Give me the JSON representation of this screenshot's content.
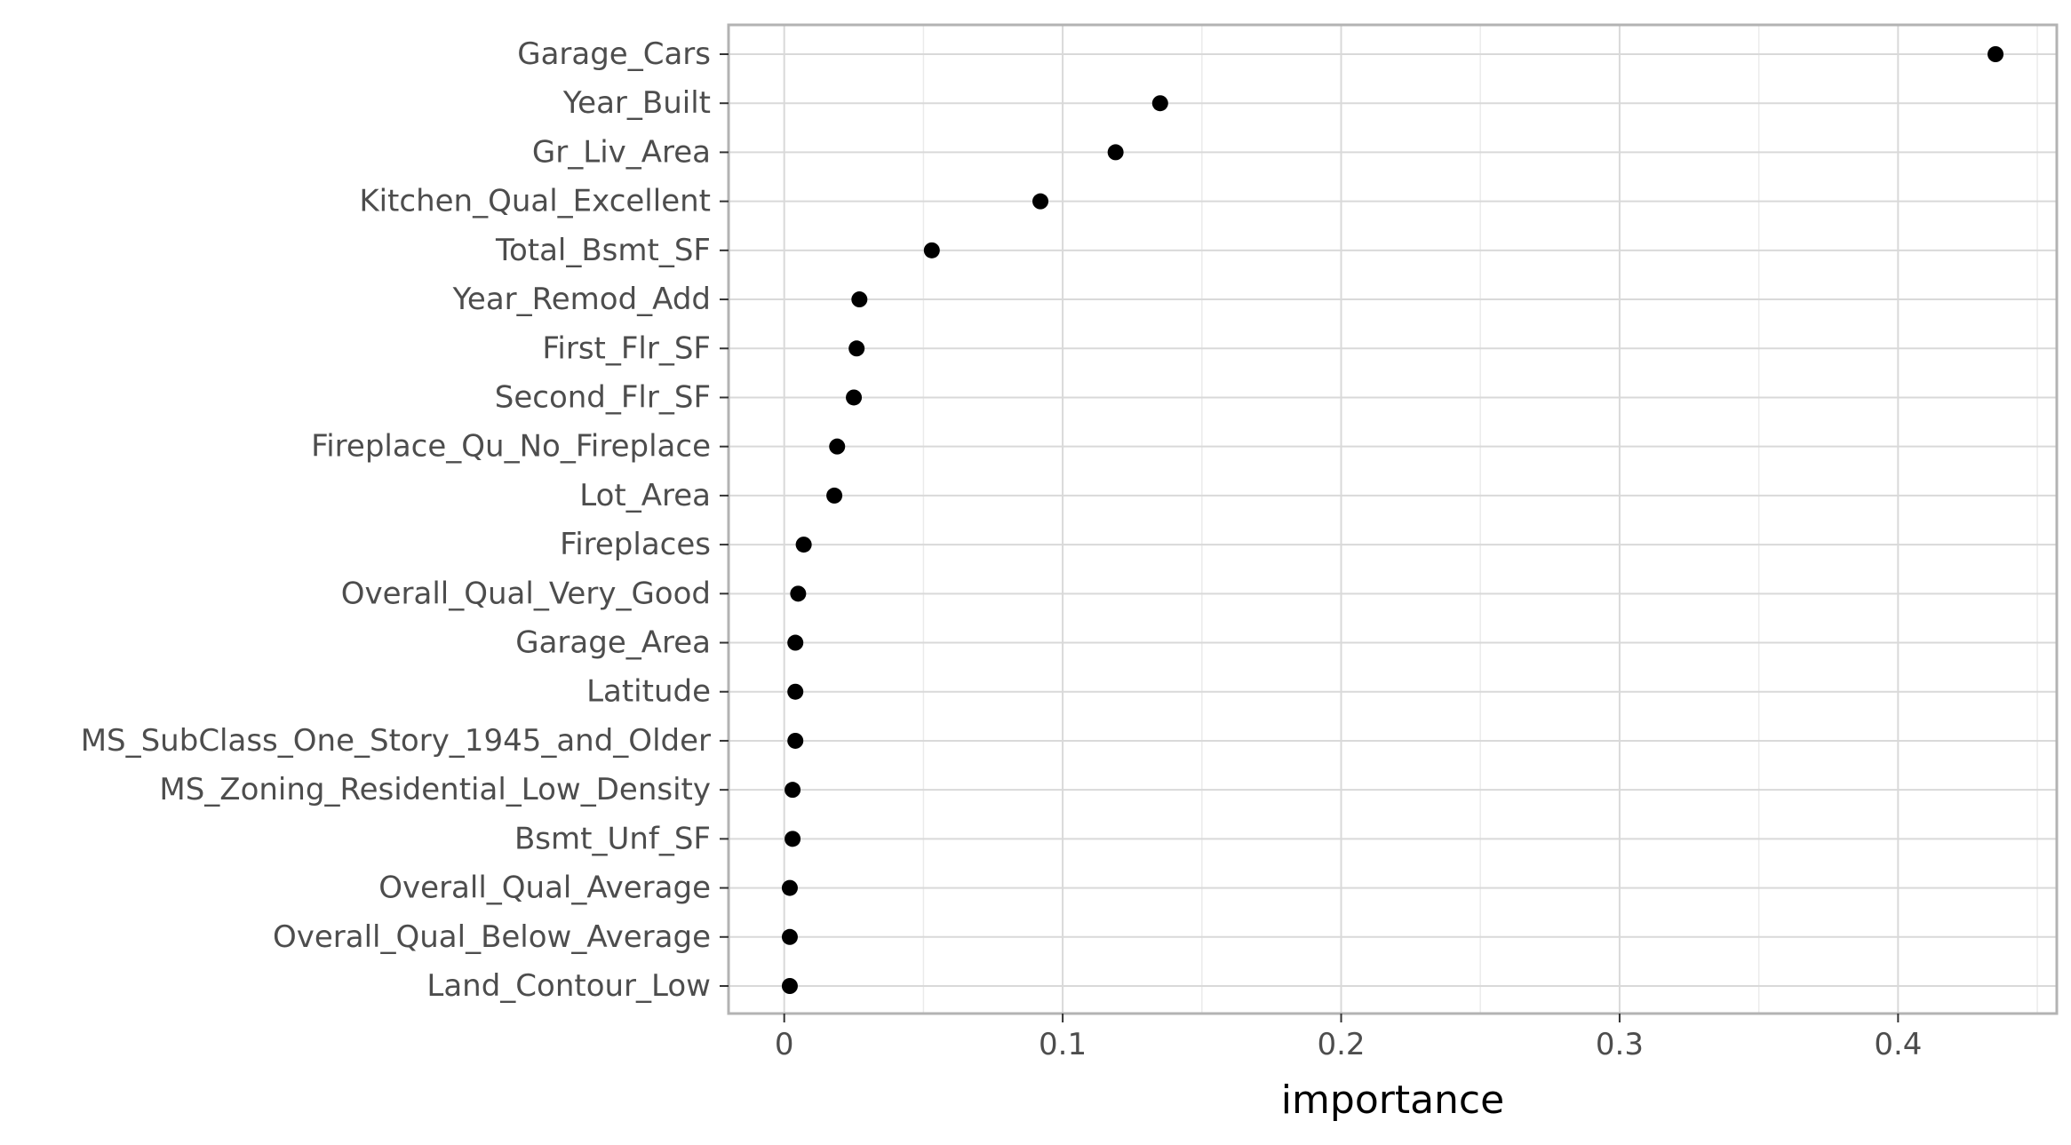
{
  "chart_data": {
    "type": "scatter",
    "title": "",
    "xlabel": "importance",
    "ylabel": "",
    "xlim": [
      -0.02,
      0.457
    ],
    "x_ticks": [
      "0",
      "0.1",
      "0.2",
      "0.3",
      "0.4"
    ],
    "x_tick_values": [
      0,
      0.1,
      0.2,
      0.3,
      0.4
    ],
    "grid": true,
    "legend": "none",
    "point_color": "#000000",
    "panel_border_color": "#b3b3b3",
    "grid_major_color": "#d9d9d9",
    "grid_minor_color": "#ebebeb",
    "categories": [
      "Garage_Cars",
      "Year_Built",
      "Gr_Liv_Area",
      "Kitchen_Qual_Excellent",
      "Total_Bsmt_SF",
      "Year_Remod_Add",
      "First_Flr_SF",
      "Second_Flr_SF",
      "Fireplace_Qu_No_Fireplace",
      "Lot_Area",
      "Fireplaces",
      "Overall_Qual_Very_Good",
      "Garage_Area",
      "Latitude",
      "MS_SubClass_One_Story_1945_and_Older",
      "MS_Zoning_Residential_Low_Density",
      "Bsmt_Unf_SF",
      "Overall_Qual_Average",
      "Overall_Qual_Below_Average",
      "Land_Contour_Low"
    ],
    "values": [
      0.435,
      0.135,
      0.119,
      0.092,
      0.053,
      0.027,
      0.026,
      0.025,
      0.019,
      0.018,
      0.007,
      0.005,
      0.004,
      0.004,
      0.004,
      0.003,
      0.003,
      0.002,
      0.002,
      0.002
    ]
  }
}
